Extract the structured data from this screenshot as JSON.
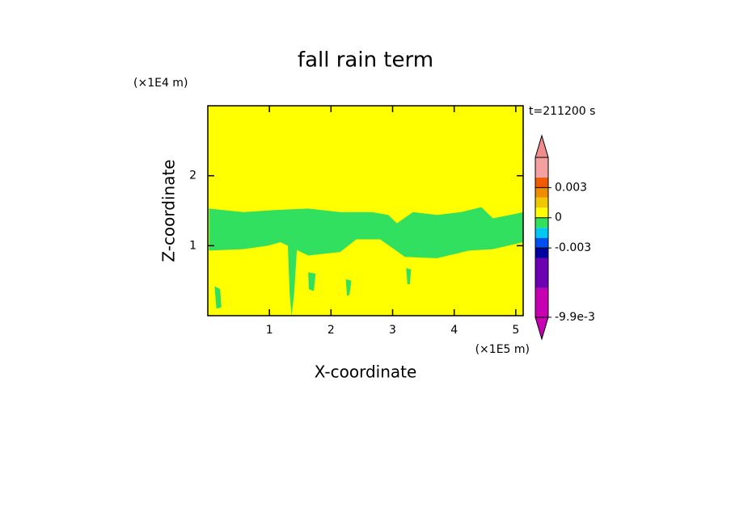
{
  "chart_data": {
    "type": "contour",
    "title": "fall rain term",
    "x_label": "X-coordinate",
    "y_label": "Z-coordinate",
    "x_unit": "(×1E5 m)",
    "y_unit": "(×1E4 m)",
    "annotation": "t=211200 s",
    "xlim": [
      0,
      5.12
    ],
    "ylim": [
      0,
      3
    ],
    "xticks": [
      1,
      2,
      3,
      4,
      5
    ],
    "yticks": [
      1,
      2
    ],
    "background_value": 0,
    "regions": [
      {
        "value": -0.0005,
        "x": [
          0.02,
          0.58,
          1.1,
          1.63,
          2.15,
          2.67,
          2.93,
          3.07,
          3.33,
          3.72,
          4.11,
          4.44,
          4.63,
          5.02,
          5.12,
          5.12,
          4.63,
          4.24,
          3.72,
          3.2,
          2.8,
          2.41,
          2.15,
          1.63,
          1.18,
          0.97,
          0.58,
          0.02
        ],
        "z": [
          1.53,
          1.48,
          1.51,
          1.53,
          1.48,
          1.48,
          1.44,
          1.32,
          1.48,
          1.44,
          1.48,
          1.55,
          1.39,
          1.46,
          1.48,
          1.05,
          0.95,
          0.93,
          0.82,
          0.84,
          1.09,
          1.09,
          0.91,
          0.86,
          1.05,
          1.0,
          0.95,
          0.93
        ]
      },
      {
        "value": -0.0005,
        "x": [
          1.3,
          1.45,
          1.4,
          1.36,
          1.33
        ],
        "z": [
          1.0,
          1.0,
          0.3,
          0.0,
          0.3
        ]
      },
      {
        "value": -0.0005,
        "x": [
          1.63,
          1.75,
          1.72,
          1.64
        ],
        "z": [
          0.62,
          0.6,
          0.35,
          0.38
        ]
      },
      {
        "value": -0.0005,
        "x": [
          2.24,
          2.33,
          2.3,
          2.26
        ],
        "z": [
          0.52,
          0.5,
          0.3,
          0.28
        ]
      },
      {
        "value": -0.0005,
        "x": [
          3.22,
          3.3,
          3.28,
          3.24
        ],
        "z": [
          0.68,
          0.66,
          0.45,
          0.45
        ]
      },
      {
        "value": -0.0005,
        "x": [
          0.11,
          0.2,
          0.22,
          0.14
        ],
        "z": [
          0.42,
          0.38,
          0.12,
          0.1
        ]
      }
    ],
    "levels": [
      -0.0099,
      -0.007,
      -0.004,
      -0.003,
      -0.002,
      -0.001,
      0,
      0.001,
      0.002,
      0.003,
      0.004,
      0.006
    ],
    "colors": [
      "#c800b4",
      "#6e00b4",
      "#0000a0",
      "#0050f0",
      "#00c8f0",
      "#32e060",
      "#ffff00",
      "#f0c800",
      "#f08c00",
      "#f05a00",
      "#f4a0a0"
    ],
    "extend_colors": {
      "low": "#c800b4",
      "high": "#f08c8c"
    },
    "colorbar_ticks": [
      0.003,
      0,
      -0.003,
      {
        "value": -0.0099,
        "label": "-9.9e-3"
      }
    ]
  }
}
